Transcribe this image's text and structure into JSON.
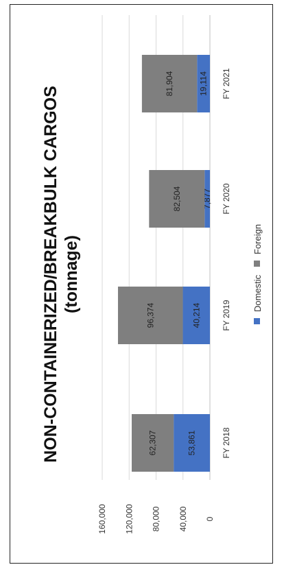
{
  "chart_data": {
    "type": "bar",
    "stacked": true,
    "title": "NON-CONTAINERIZED/BREAKBULK CARGOS",
    "subtitle": "(tonnage)",
    "categories": [
      "FY 2018",
      "FY 2019",
      "FY 2020",
      "FY 2021"
    ],
    "series": [
      {
        "name": "Domestic",
        "color": "#4472C4",
        "values": [
          53861,
          40214,
          7877,
          19114
        ],
        "labels": [
          "53,861",
          "40,214",
          "7,877",
          "19,114"
        ]
      },
      {
        "name": "Foreign",
        "color": "#7F7F7F",
        "values": [
          62307,
          96374,
          82504,
          81904
        ],
        "labels": [
          "62,307",
          "96,374",
          "82,504",
          "81,904"
        ]
      }
    ],
    "ylim": [
      0,
      160000
    ],
    "yticks": [
      0,
      40000,
      80000,
      120000,
      160000
    ],
    "ytick_labels": [
      "0",
      "40,000",
      "80,000",
      "120,000",
      "160,000"
    ],
    "grid": true,
    "legend_position": "bottom",
    "orientation": "rotated 90° counter-clockwise"
  }
}
